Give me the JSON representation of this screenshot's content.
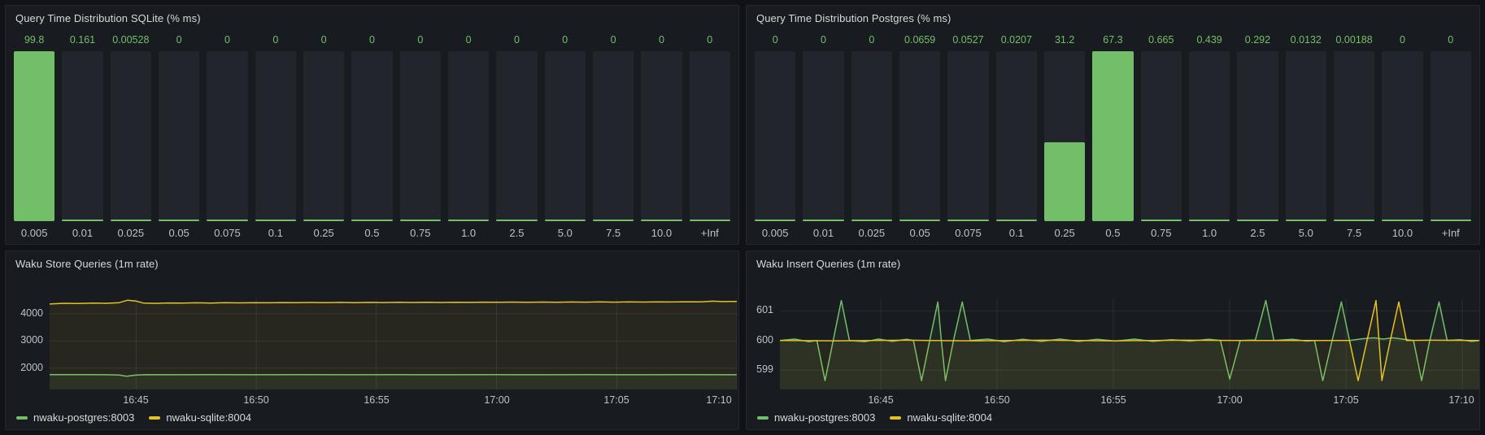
{
  "colors": {
    "canvas": "#111217",
    "panel": "#181b1f",
    "panel_border": "#26282e",
    "bar_track": "#22252b",
    "green": "#73bf69",
    "yellow": "#e5c126",
    "title_text": "#d8d9da",
    "axis_text": "#c0c2ca",
    "grid": "rgba(204,204,220,0.10)"
  },
  "chart_data": [
    {
      "id": "sqlite-histogram",
      "type": "bar",
      "title": "Query Time Distribution SQLite (% ms)",
      "categories": [
        "0.005",
        "0.01",
        "0.025",
        "0.05",
        "0.075",
        "0.1",
        "0.25",
        "0.5",
        "0.75",
        "1.0",
        "2.5",
        "5.0",
        "7.5",
        "10.0",
        "+Inf"
      ],
      "values": [
        99.8,
        0.161,
        0.00528,
        0,
        0,
        0,
        0,
        0,
        0,
        0,
        0,
        0,
        0,
        0,
        0
      ],
      "value_labels": [
        "99.8",
        "0.161",
        "0.00528",
        "0",
        "0",
        "0",
        "0",
        "0",
        "0",
        "0",
        "0",
        "0",
        "0",
        "0",
        "0"
      ],
      "ylim": [
        0,
        99.8
      ],
      "xlabel": "",
      "ylabel": "",
      "bar_color": "#73bf69"
    },
    {
      "id": "postgres-histogram",
      "type": "bar",
      "title": "Query Time Distribution Postgres (% ms)",
      "categories": [
        "0.005",
        "0.01",
        "0.025",
        "0.05",
        "0.075",
        "0.1",
        "0.25",
        "0.5",
        "0.75",
        "1.0",
        "2.5",
        "5.0",
        "7.5",
        "10.0",
        "+Inf"
      ],
      "values": [
        0,
        0,
        0,
        0.0659,
        0.0527,
        0.0207,
        31.2,
        67.3,
        0.665,
        0.439,
        0.292,
        0.0132,
        0.00188,
        0,
        0
      ],
      "value_labels": [
        "0",
        "0",
        "0",
        "0.0659",
        "0.0527",
        "0.0207",
        "31.2",
        "67.3",
        "0.665",
        "0.439",
        "0.292",
        "0.0132",
        "0.00188",
        "0",
        "0"
      ],
      "ylim": [
        0,
        67.3
      ],
      "xlabel": "",
      "ylabel": "",
      "bar_color": "#73bf69"
    },
    {
      "id": "store-queries-timeseries",
      "type": "line",
      "title": "Waku Store Queries (1m rate)",
      "x_range": [
        1.4,
        30
      ],
      "ylim": [
        1220,
        4570
      ],
      "y_ticks": [
        2000,
        3000,
        4000
      ],
      "x_ticks": [
        {
          "t": 5,
          "label": "16:45"
        },
        {
          "t": 10,
          "label": "16:50"
        },
        {
          "t": 15,
          "label": "16:55"
        },
        {
          "t": 20,
          "label": "17:00"
        },
        {
          "t": 25,
          "label": "17:05"
        },
        {
          "t": 30,
          "label": "17:10"
        }
      ],
      "legend_position": "bottom-left",
      "grid": true,
      "series": [
        {
          "name": "nwaku-postgres:8003",
          "color": "#73bf69",
          "points": [
            [
              1.4,
              1768
            ],
            [
              2.2,
              1764
            ],
            [
              3.0,
              1766
            ],
            [
              3.8,
              1762
            ],
            [
              4.3,
              1750
            ],
            [
              4.6,
              1706
            ],
            [
              5.0,
              1752
            ],
            [
              5.5,
              1764
            ],
            [
              6.5,
              1761
            ],
            [
              8,
              1764
            ],
            [
              10,
              1761
            ],
            [
              12,
              1764
            ],
            [
              14,
              1761
            ],
            [
              16,
              1764
            ],
            [
              18,
              1761
            ],
            [
              20,
              1764
            ],
            [
              22,
              1761
            ],
            [
              24,
              1764
            ],
            [
              26,
              1761
            ],
            [
              28,
              1764
            ],
            [
              30,
              1762
            ]
          ]
        },
        {
          "name": "nwaku-sqlite:8004",
          "color": "#e5c126",
          "points": [
            [
              1.4,
              4365
            ],
            [
              2.0,
              4390
            ],
            [
              2.6,
              4385
            ],
            [
              3.2,
              4398
            ],
            [
              3.8,
              4392
            ],
            [
              4.3,
              4415
            ],
            [
              4.65,
              4505
            ],
            [
              5.0,
              4470
            ],
            [
              5.3,
              4400
            ],
            [
              5.8,
              4388
            ],
            [
              6.3,
              4402
            ],
            [
              6.9,
              4396
            ],
            [
              7.5,
              4408
            ],
            [
              8.1,
              4400
            ],
            [
              8.7,
              4412
            ],
            [
              9.3,
              4405
            ],
            [
              9.9,
              4415
            ],
            [
              10.5,
              4408
            ],
            [
              11.1,
              4418
            ],
            [
              11.7,
              4410
            ],
            [
              12.3,
              4420
            ],
            [
              12.9,
              4413
            ],
            [
              13.5,
              4422
            ],
            [
              14.1,
              4415
            ],
            [
              14.7,
              4424
            ],
            [
              15.3,
              4417
            ],
            [
              15.9,
              4426
            ],
            [
              16.5,
              4419
            ],
            [
              17.1,
              4428
            ],
            [
              17.7,
              4421
            ],
            [
              18.3,
              4430
            ],
            [
              18.9,
              4423
            ],
            [
              19.5,
              4432
            ],
            [
              20.1,
              4425
            ],
            [
              20.7,
              4434
            ],
            [
              21.3,
              4427
            ],
            [
              21.9,
              4436
            ],
            [
              22.5,
              4429
            ],
            [
              23.1,
              4438
            ],
            [
              23.7,
              4431
            ],
            [
              24.3,
              4440
            ],
            [
              24.9,
              4433
            ],
            [
              25.5,
              4442
            ],
            [
              26.1,
              4435
            ],
            [
              26.7,
              4444
            ],
            [
              27.3,
              4437
            ],
            [
              27.9,
              4446
            ],
            [
              28.5,
              4440
            ],
            [
              29.0,
              4468
            ],
            [
              29.4,
              4452
            ],
            [
              29.7,
              4460
            ],
            [
              30,
              4455
            ]
          ]
        }
      ]
    },
    {
      "id": "insert-queries-timeseries",
      "type": "line",
      "title": "Waku Insert Queries (1m rate)",
      "x_range": [
        0.66,
        30.73
      ],
      "ylim": [
        598.35,
        601.42
      ],
      "y_ticks": [
        599,
        600,
        601
      ],
      "x_ticks": [
        {
          "t": 5,
          "label": "16:45"
        },
        {
          "t": 10,
          "label": "16:50"
        },
        {
          "t": 15,
          "label": "16:55"
        },
        {
          "t": 20,
          "label": "17:00"
        },
        {
          "t": 25,
          "label": "17:05"
        },
        {
          "t": 30,
          "label": "17:10"
        }
      ],
      "legend_position": "bottom-left",
      "grid": true,
      "series": [
        {
          "name": "nwaku-postgres:8003",
          "color": "#73bf69",
          "points": [
            [
              0.66,
              600
            ],
            [
              1.3,
              600.05
            ],
            [
              1.9,
              599.96
            ],
            [
              2.25,
              600
            ],
            [
              2.6,
              598.65
            ],
            [
              2.95,
              600
            ],
            [
              3.3,
              601.35
            ],
            [
              3.65,
              600
            ],
            [
              4.3,
              599.96
            ],
            [
              4.9,
              600.05
            ],
            [
              5.5,
              599.97
            ],
            [
              6.1,
              600.04
            ],
            [
              6.4,
              600
            ],
            [
              6.75,
              598.65
            ],
            [
              7.1,
              600
            ],
            [
              7.45,
              601.3
            ],
            [
              7.6,
              600
            ],
            [
              7.78,
              598.65
            ],
            [
              8.12,
              600
            ],
            [
              8.5,
              601.3
            ],
            [
              8.85,
              600
            ],
            [
              9.6,
              600.05
            ],
            [
              10.3,
              599.96
            ],
            [
              11.1,
              600.04
            ],
            [
              11.9,
              599.97
            ],
            [
              12.7,
              600.05
            ],
            [
              13.5,
              599.97
            ],
            [
              14.3,
              600.04
            ],
            [
              15.1,
              599.98
            ],
            [
              15.9,
              600.05
            ],
            [
              16.7,
              599.97
            ],
            [
              17.5,
              600.03
            ],
            [
              18.3,
              599.98
            ],
            [
              19.1,
              600.04
            ],
            [
              19.6,
              600
            ],
            [
              20.0,
              598.7
            ],
            [
              20.45,
              600
            ],
            [
              21.1,
              600.02
            ],
            [
              21.55,
              601.35
            ],
            [
              21.9,
              600
            ],
            [
              22.7,
              600.04
            ],
            [
              23.3,
              599.98
            ],
            [
              23.65,
              600
            ],
            [
              24.0,
              598.65
            ],
            [
              24.4,
              600
            ],
            [
              24.8,
              601.3
            ],
            [
              25.15,
              600
            ],
            [
              25.7,
              600.06
            ],
            [
              26.2,
              600.09
            ],
            [
              26.6,
              600.05
            ],
            [
              27.0,
              600.09
            ],
            [
              27.5,
              600.04
            ],
            [
              27.9,
              600
            ],
            [
              28.25,
              598.65
            ],
            [
              28.6,
              600
            ],
            [
              29.0,
              601.3
            ],
            [
              29.35,
              600
            ],
            [
              29.9,
              600.03
            ],
            [
              30.4,
              599.97
            ],
            [
              30.73,
              600
            ]
          ]
        },
        {
          "name": "nwaku-sqlite:8004",
          "color": "#e5c126",
          "points": [
            [
              0.66,
              600
            ],
            [
              3,
              599.99
            ],
            [
              6,
              600.01
            ],
            [
              9,
              599.99
            ],
            [
              12,
              600.01
            ],
            [
              15,
              599.99
            ],
            [
              18,
              600.01
            ],
            [
              21,
              600
            ],
            [
              24.6,
              600
            ],
            [
              25.15,
              600
            ],
            [
              25.52,
              598.65
            ],
            [
              25.9,
              600
            ],
            [
              26.29,
              601.35
            ],
            [
              26.42,
              600
            ],
            [
              26.54,
              598.65
            ],
            [
              26.9,
              600
            ],
            [
              27.27,
              601.3
            ],
            [
              27.6,
              600
            ],
            [
              28.6,
              600.01
            ],
            [
              30.73,
              600
            ]
          ]
        }
      ]
    }
  ]
}
